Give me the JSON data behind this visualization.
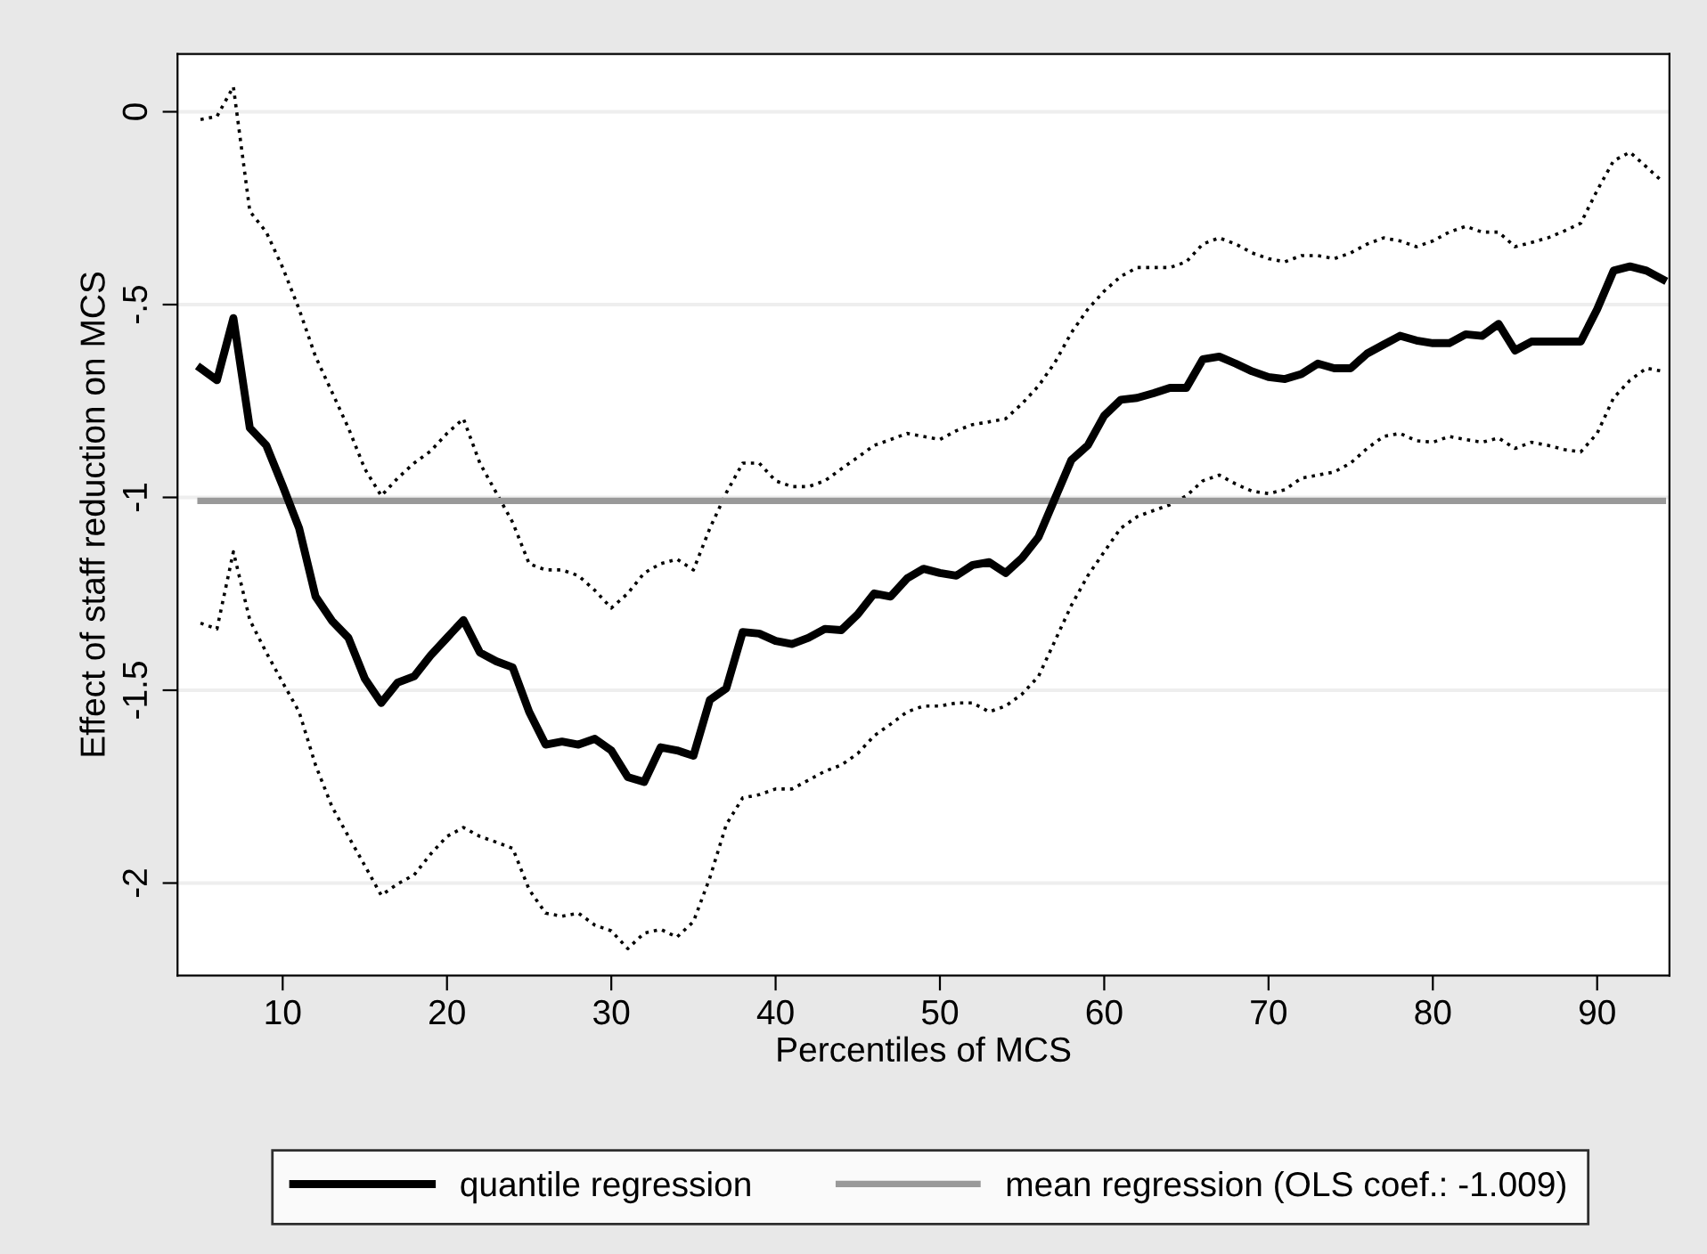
{
  "chart_data": {
    "type": "line",
    "xlabel": "Percentiles of MCS",
    "ylabel": "Effect of staff reduction on MCS",
    "x": [
      5,
      6,
      7,
      8,
      9,
      10,
      11,
      12,
      13,
      14,
      15,
      16,
      17,
      18,
      19,
      20,
      21,
      22,
      23,
      24,
      25,
      26,
      27,
      28,
      29,
      30,
      31,
      32,
      33,
      34,
      35,
      36,
      37,
      38,
      39,
      40,
      41,
      42,
      43,
      44,
      45,
      46,
      47,
      48,
      49,
      50,
      51,
      52,
      53,
      54,
      55,
      56,
      57,
      58,
      59,
      60,
      61,
      62,
      63,
      64,
      65,
      66,
      67,
      68,
      69,
      70,
      71,
      72,
      73,
      74,
      75,
      76,
      77,
      78,
      79,
      80,
      81,
      82,
      83,
      84,
      85,
      86,
      87,
      88,
      89,
      90,
      91,
      92,
      93,
      94
    ],
    "xlim": [
      3.6,
      94.4
    ],
    "xticks": [
      10,
      20,
      30,
      40,
      50,
      60,
      70,
      80,
      90
    ],
    "ylim": [
      -2.24,
      0.15
    ],
    "yticks": [
      {
        "value": 0,
        "label": "0"
      },
      {
        "value": -0.5,
        "label": "-.5"
      },
      {
        "value": -1,
        "label": "-1"
      },
      {
        "value": -1.5,
        "label": "-1.5"
      },
      {
        "value": -2,
        "label": "-2"
      }
    ],
    "grid": "y",
    "legend": "bottom",
    "series": [
      {
        "name": "quantile regression",
        "color": "#000000",
        "line_style": "solid",
        "values": [
          -0.665,
          -0.696,
          -0.535,
          -0.82,
          -0.865,
          -0.97,
          -1.08,
          -1.257,
          -1.32,
          -1.364,
          -1.47,
          -1.533,
          -1.48,
          -1.464,
          -1.41,
          -1.364,
          -1.318,
          -1.402,
          -1.425,
          -1.441,
          -1.556,
          -1.641,
          -1.633,
          -1.641,
          -1.626,
          -1.656,
          -1.725,
          -1.738,
          -1.648,
          -1.656,
          -1.67,
          -1.525,
          -1.495,
          -1.349,
          -1.353,
          -1.372,
          -1.38,
          -1.364,
          -1.341,
          -1.344,
          -1.303,
          -1.249,
          -1.257,
          -1.21,
          -1.185,
          -1.196,
          -1.203,
          -1.175,
          -1.168,
          -1.196,
          -1.157,
          -1.103,
          -1.003,
          -0.903,
          -0.865,
          -0.788,
          -0.747,
          -0.742,
          -0.73,
          -0.716,
          -0.716,
          -0.642,
          -0.635,
          -0.653,
          -0.673,
          -0.688,
          -0.693,
          -0.68,
          -0.653,
          -0.665,
          -0.665,
          -0.627,
          -0.604,
          -0.581,
          -0.593,
          -0.6,
          -0.6,
          -0.577,
          -0.581,
          -0.55,
          -0.619,
          -0.596,
          -0.596,
          -0.596,
          -0.596,
          -0.512,
          -0.412,
          -0.401,
          -0.412,
          -0.435
        ]
      },
      {
        "color": "#000000",
        "line_style": "dotted",
        "values": [
          -0.02,
          -0.012,
          0.065,
          -0.258,
          -0.312,
          -0.404,
          -0.512,
          -0.635,
          -0.727,
          -0.82,
          -0.926,
          -0.996,
          -0.95,
          -0.911,
          -0.88,
          -0.834,
          -0.796,
          -0.911,
          -0.988,
          -1.065,
          -1.172,
          -1.188,
          -1.188,
          -1.203,
          -1.241,
          -1.287,
          -1.249,
          -1.196,
          -1.172,
          -1.16,
          -1.188,
          -1.08,
          -0.988,
          -0.911,
          -0.911,
          -0.957,
          -0.972,
          -0.972,
          -0.957,
          -0.926,
          -0.896,
          -0.865,
          -0.85,
          -0.834,
          -0.842,
          -0.85,
          -0.827,
          -0.811,
          -0.804,
          -0.796,
          -0.757,
          -0.711,
          -0.65,
          -0.573,
          -0.512,
          -0.465,
          -0.427,
          -0.404,
          -0.404,
          -0.404,
          -0.389,
          -0.343,
          -0.327,
          -0.343,
          -0.366,
          -0.381,
          -0.389,
          -0.373,
          -0.373,
          -0.381,
          -0.366,
          -0.343,
          -0.327,
          -0.335,
          -0.35,
          -0.335,
          -0.312,
          -0.297,
          -0.312,
          -0.312,
          -0.35,
          -0.339,
          -0.327,
          -0.309,
          -0.289,
          -0.204,
          -0.127,
          -0.105,
          -0.143,
          -0.182
        ]
      },
      {
        "color": "#000000",
        "line_style": "dotted",
        "values": [
          -1.326,
          -1.341,
          -1.141,
          -1.318,
          -1.402,
          -1.48,
          -1.556,
          -1.694,
          -1.802,
          -1.879,
          -1.955,
          -2.032,
          -2.002,
          -1.979,
          -1.925,
          -1.879,
          -1.856,
          -1.879,
          -1.894,
          -1.91,
          -2.017,
          -2.078,
          -2.086,
          -2.078,
          -2.109,
          -2.124,
          -2.17,
          -2.13,
          -2.12,
          -2.14,
          -2.1,
          -1.986,
          -1.848,
          -1.779,
          -1.771,
          -1.756,
          -1.756,
          -1.733,
          -1.71,
          -1.694,
          -1.664,
          -1.618,
          -1.588,
          -1.556,
          -1.541,
          -1.541,
          -1.533,
          -1.533,
          -1.556,
          -1.541,
          -1.51,
          -1.464,
          -1.372,
          -1.28,
          -1.203,
          -1.141,
          -1.08,
          -1.05,
          -1.034,
          -1.019,
          -0.996,
          -0.957,
          -0.942,
          -0.965,
          -0.984,
          -0.99,
          -0.98,
          -0.95,
          -0.942,
          -0.934,
          -0.911,
          -0.873,
          -0.842,
          -0.834,
          -0.853,
          -0.857,
          -0.842,
          -0.85,
          -0.857,
          -0.846,
          -0.873,
          -0.857,
          -0.865,
          -0.876,
          -0.882,
          -0.834,
          -0.742,
          -0.696,
          -0.665,
          -0.673
        ]
      },
      {
        "name": "mean regression (OLS coef.: -1.009)",
        "color": "#999999",
        "line_style": "solid",
        "x": [
          5,
          94
        ],
        "values": [
          -1.009,
          -1.009
        ]
      }
    ]
  }
}
